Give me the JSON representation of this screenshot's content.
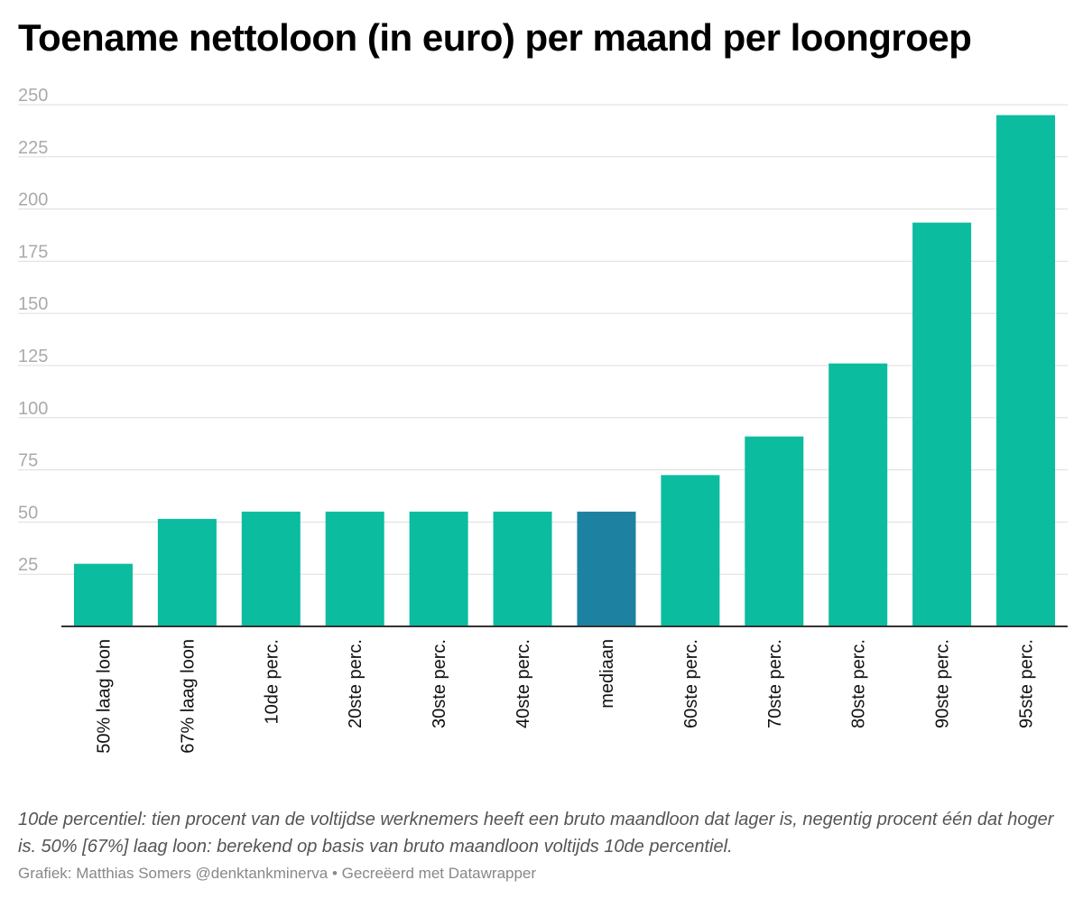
{
  "chart_data": {
    "type": "bar",
    "title": "Toename nettoloon (in euro) per maand per loongroep",
    "categories": [
      "50% laag loon",
      "67% laag loon",
      "10de perc.",
      "20ste perc.",
      "30ste perc.",
      "40ste perc.",
      "mediaan",
      "60ste perc.",
      "70ste perc.",
      "80ste perc.",
      "90ste perc.",
      "95ste perc."
    ],
    "values": [
      30,
      51.5,
      55,
      55,
      55,
      55,
      55,
      72.5,
      91,
      126,
      193.5,
      245
    ],
    "highlight_category": "mediaan",
    "yticks": [
      25,
      50,
      75,
      100,
      125,
      150,
      175,
      200,
      225,
      250
    ],
    "ylim": [
      0,
      250
    ],
    "grid": true,
    "xlabel": "",
    "ylabel": ""
  },
  "colors": {
    "bar": "#0bbc9f",
    "highlight": "#1d82a2",
    "grid": "#dddddd",
    "axis": "#333333"
  },
  "notes": "10de percentiel: tien procent van de voltijdse werknemers heeft een bruto maandloon dat lager is, negentig procent één dat hoger is. 50% [67%] laag loon: berekend op basis van bruto maandloon voltijds 10de percentiel.",
  "byline": "Grafiek: Matthias Somers @denktankminerva • Gecreëerd met Datawrapper"
}
